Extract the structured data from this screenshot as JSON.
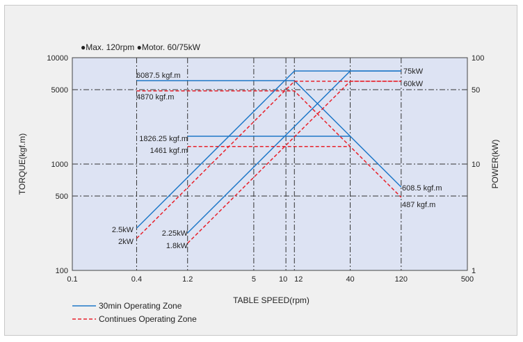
{
  "chart_data": {
    "type": "line",
    "subtitle": "●Max. 120rpm  ●Motor. 60/75kW",
    "xlabel": "TABLE SPEED(rpm)",
    "ylabel": "TORQUE(kgf.m)",
    "y2label": "POWER(kW)",
    "x_scale": "log",
    "y_scale": "log",
    "y2_scale": "log",
    "xlim": [
      0.1,
      500
    ],
    "ylim": [
      100,
      10000
    ],
    "y2lim": [
      1,
      100
    ],
    "x_ticks": [
      "0.1",
      "0.4",
      "1.2",
      "5",
      "10",
      "12",
      "40",
      "120",
      "500"
    ],
    "y_ticks": [
      "100",
      "500",
      "1000",
      "5000",
      "10000"
    ],
    "y2_ticks": [
      "1",
      "10",
      "50",
      "100"
    ],
    "grid": true,
    "legend_position": "bottom-left",
    "colors": {
      "thirty_min": "#1f78c8",
      "continuous": "#e8202a",
      "plot_bg": "#dde3f3"
    },
    "series": [
      {
        "name": "30min Operating Zone",
        "style": "solid",
        "torque": {
          "x": [
            0.4,
            12,
            40,
            120
          ],
          "y": [
            6087.5,
            6087.5,
            1826.25,
            608.5
          ]
        },
        "torque_low": {
          "x": [
            1.2,
            40
          ],
          "y": [
            1826.25,
            1826.25
          ]
        },
        "power_high": {
          "x": [
            0.4,
            12,
            120
          ],
          "y": [
            2.5,
            75,
            75
          ]
        },
        "power_low": {
          "x": [
            1.2,
            40,
            120
          ],
          "y": [
            2.25,
            75,
            75
          ]
        }
      },
      {
        "name": "Continues  Operating Zone",
        "style": "dashed",
        "torque": {
          "x": [
            0.4,
            12,
            40,
            120
          ],
          "y": [
            4870,
            4870,
            1461,
            487
          ]
        },
        "torque_low": {
          "x": [
            1.2,
            40
          ],
          "y": [
            1461,
            1461
          ]
        },
        "power_high": {
          "x": [
            0.4,
            12,
            120
          ],
          "y": [
            2,
            60,
            60
          ]
        },
        "power_low": {
          "x": [
            1.2,
            40,
            120
          ],
          "y": [
            1.8,
            60,
            60
          ]
        }
      }
    ],
    "annotations": [
      "6087.5 kgf.m",
      "4870 kgf.m",
      "1826.25 kgf.m",
      "1461 kgf.m",
      "608.5 kgf.m",
      "487 kgf.m",
      "75kW",
      "60kW",
      "2.5kW",
      "2kW",
      "2.25kW",
      "1.8kW"
    ]
  }
}
